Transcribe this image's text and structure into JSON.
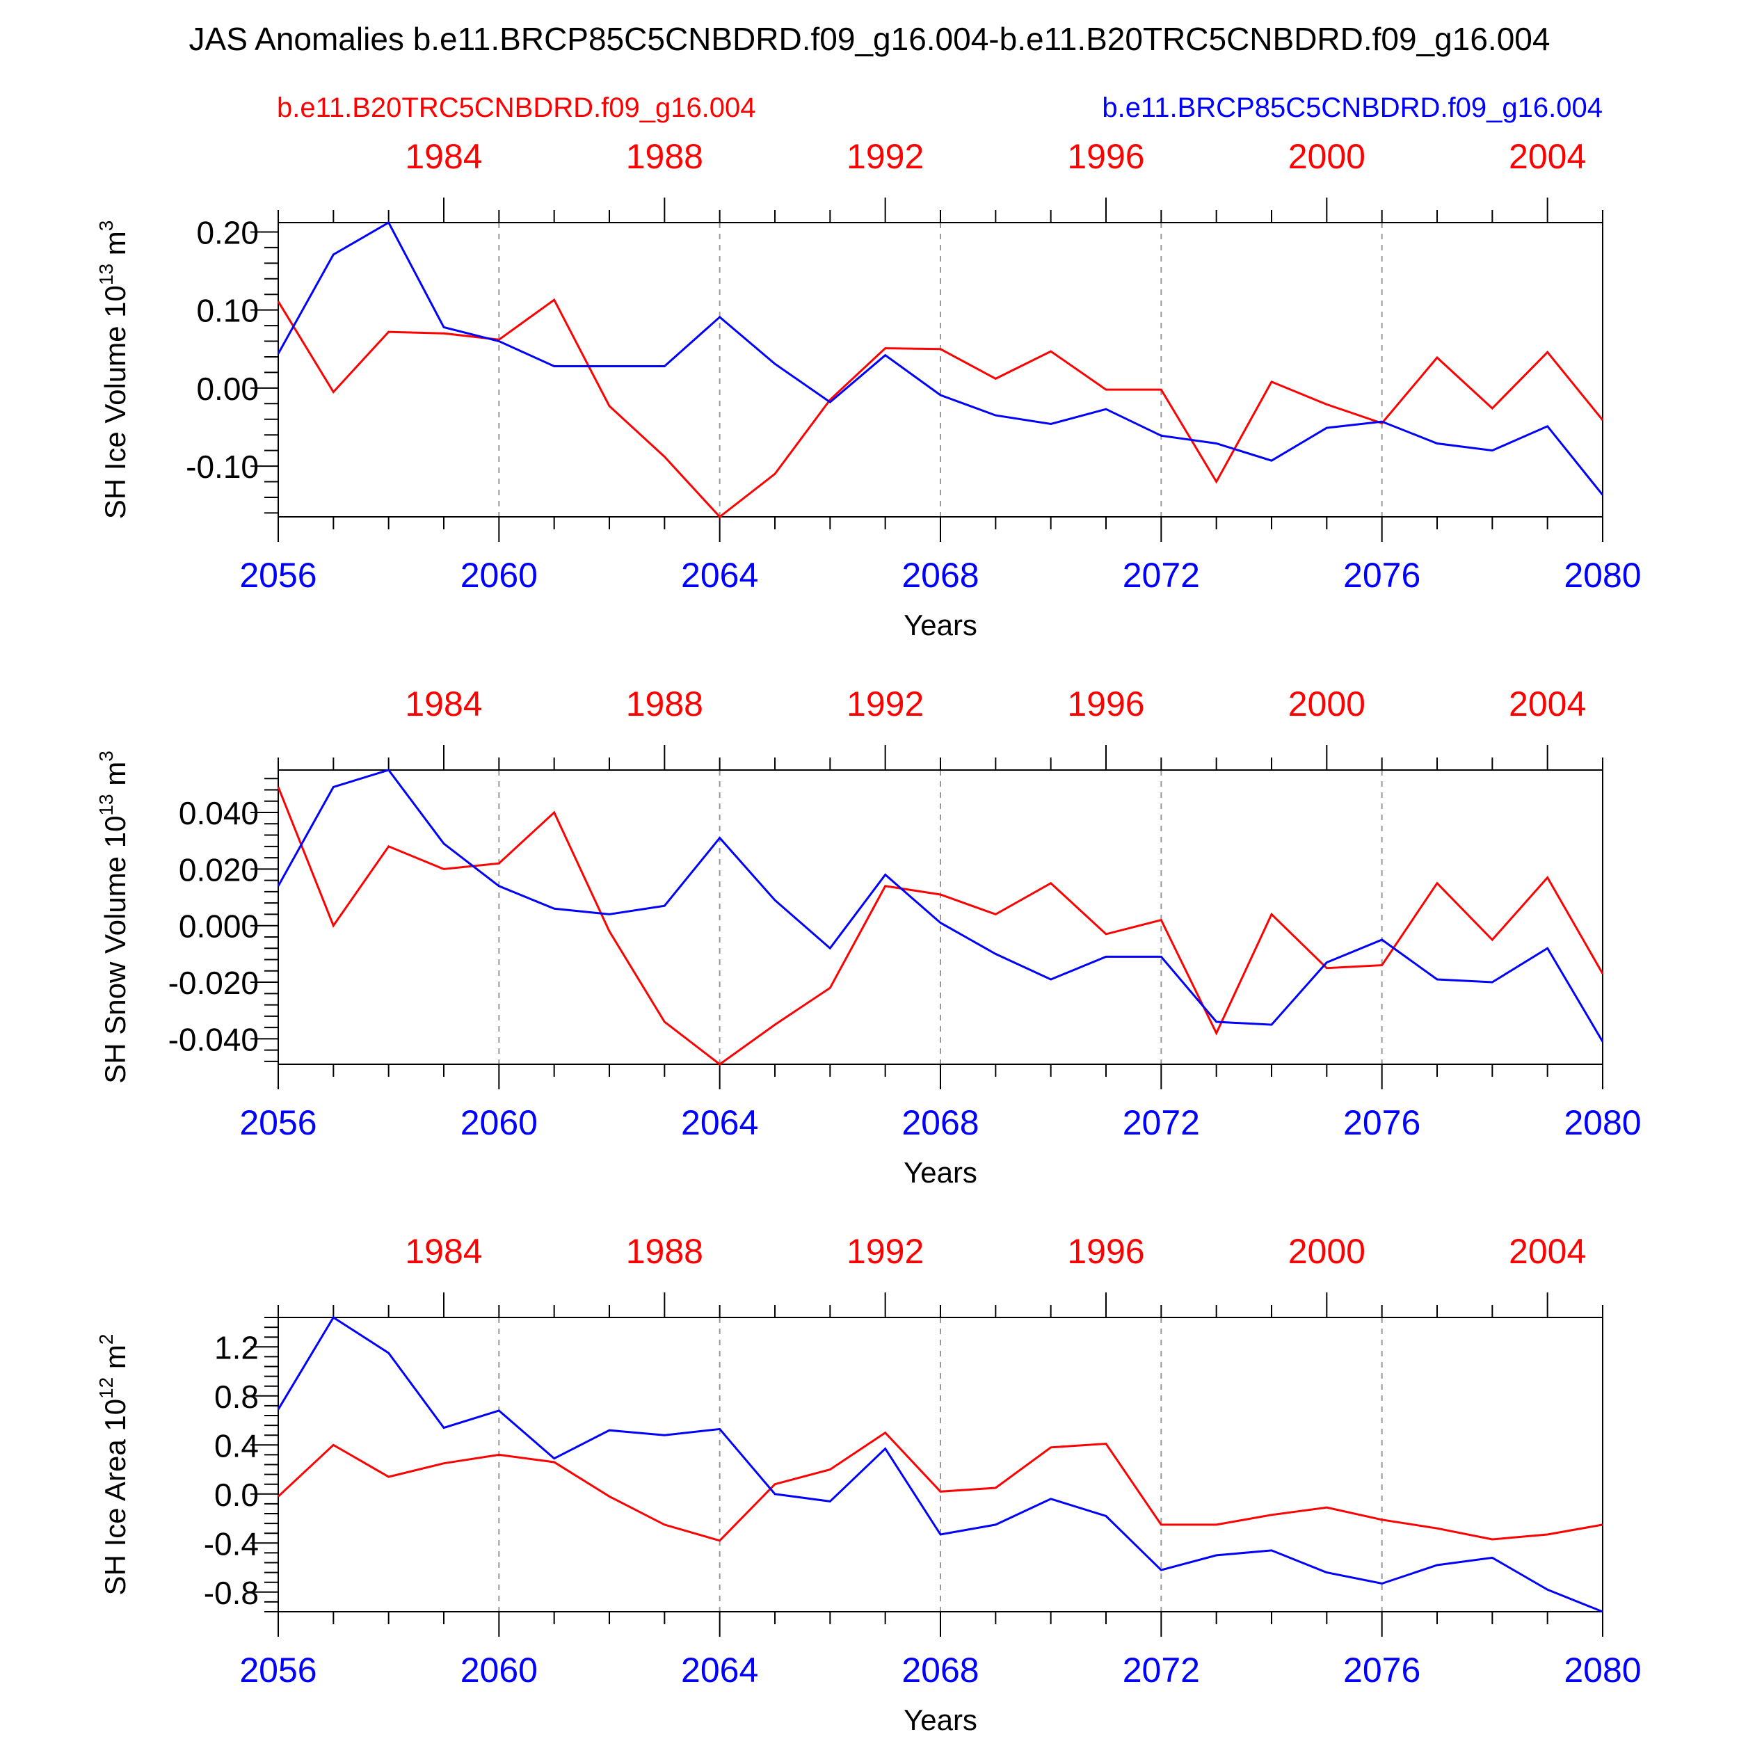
{
  "figure": {
    "title": "JAS Anomalies b.e11.BRCP85C5CNBDRD.f09_g16.004-b.e11.B20TRC5CNBDRD.f09_g16.004",
    "legend_left": "b.e11.B20TRC5CNBDRD.f09_g16.004",
    "legend_right": "b.e11.BRCP85C5CNBDRD.f09_g16.004",
    "colors": {
      "historical": "#ff0000",
      "future": "#0000ff",
      "axis": "#000000",
      "grid": "#999999"
    }
  },
  "chart_data": [
    {
      "type": "line",
      "ylabel": "SH Ice Volume 10",
      "ylabel_exp": "13",
      "ylabel_unit": "m",
      "ylabel_unit_exp": "3",
      "xlabel": "Years",
      "x_bottom_ticks": [
        "2056",
        "2060",
        "2064",
        "2068",
        "2072",
        "2076",
        "2080"
      ],
      "x_top_ticks": [
        "1984",
        "1988",
        "1992",
        "1996",
        "2000",
        "2004"
      ],
      "y_ticks": [
        0.2,
        0.1,
        0.0,
        -0.1
      ],
      "y_tick_labels": [
        "0.20",
        "0.10",
        "0.00",
        "-0.10"
      ],
      "y_minor_step": 0.02,
      "ylim": [
        -0.165,
        0.212
      ],
      "xlim": [
        2056,
        2080
      ],
      "x_grid": true,
      "series": [
        {
          "name": "b.e11.B20TRC5CNBDRD.f09_g16.004",
          "color": "#ff0000",
          "x": [
            1981,
            1982,
            1983,
            1984,
            1985,
            1986,
            1987,
            1988,
            1989,
            1990,
            1991,
            1992,
            1993,
            1994,
            1995,
            1996,
            1997,
            1998,
            1999,
            2000,
            2001,
            2002,
            2003,
            2004,
            2005
          ],
          "values": [
            0.111,
            -0.005,
            0.072,
            0.07,
            0.062,
            0.113,
            -0.023,
            -0.088,
            -0.165,
            -0.11,
            -0.015,
            0.051,
            0.05,
            0.012,
            0.047,
            -0.002,
            -0.002,
            -0.12,
            0.008,
            -0.021,
            -0.045,
            0.039,
            -0.026,
            0.046,
            -0.041
          ]
        },
        {
          "name": "b.e11.BRCP85C5CNBDRD.f09_g16.004",
          "color": "#0000ff",
          "x": [
            2056,
            2057,
            2058,
            2059,
            2060,
            2061,
            2062,
            2063,
            2064,
            2065,
            2066,
            2067,
            2068,
            2069,
            2070,
            2071,
            2072,
            2073,
            2074,
            2075,
            2076,
            2077,
            2078,
            2079,
            2080
          ],
          "values": [
            0.044,
            0.171,
            0.212,
            0.078,
            0.06,
            0.028,
            0.028,
            0.028,
            0.091,
            0.031,
            -0.018,
            0.042,
            -0.009,
            -0.035,
            -0.046,
            -0.027,
            -0.061,
            -0.071,
            -0.093,
            -0.051,
            -0.043,
            -0.071,
            -0.08,
            -0.049,
            -0.137
          ]
        }
      ]
    },
    {
      "type": "line",
      "ylabel": "SH Snow Volume 10",
      "ylabel_exp": "13",
      "ylabel_unit": "m",
      "ylabel_unit_exp": "3",
      "xlabel": "Years",
      "x_bottom_ticks": [
        "2056",
        "2060",
        "2064",
        "2068",
        "2072",
        "2076",
        "2080"
      ],
      "x_top_ticks": [
        "1984",
        "1988",
        "1992",
        "1996",
        "2000",
        "2004"
      ],
      "y_ticks": [
        0.04,
        0.02,
        0.0,
        -0.02,
        -0.04
      ],
      "y_tick_labels": [
        "0.040",
        "0.020",
        "0.000",
        "-0.020",
        "-0.040"
      ],
      "y_minor_step": 0.004,
      "ylim": [
        -0.049,
        0.055
      ],
      "xlim": [
        2056,
        2080
      ],
      "x_grid": true,
      "series": [
        {
          "name": "b.e11.B20TRC5CNBDRD.f09_g16.004",
          "color": "#ff0000",
          "x": [
            1981,
            1982,
            1983,
            1984,
            1985,
            1986,
            1987,
            1988,
            1989,
            1990,
            1991,
            1992,
            1993,
            1994,
            1995,
            1996,
            1997,
            1998,
            1999,
            2000,
            2001,
            2002,
            2003,
            2004,
            2005
          ],
          "values": [
            0.049,
            0.0,
            0.028,
            0.02,
            0.022,
            0.04,
            -0.002,
            -0.034,
            -0.049,
            -0.035,
            -0.022,
            0.014,
            0.011,
            0.004,
            0.015,
            -0.003,
            0.002,
            -0.038,
            0.004,
            -0.015,
            -0.014,
            0.015,
            -0.005,
            0.017,
            -0.017
          ]
        },
        {
          "name": "b.e11.BRCP85C5CNBDRD.f09_g16.004",
          "color": "#0000ff",
          "x": [
            2056,
            2057,
            2058,
            2059,
            2060,
            2061,
            2062,
            2063,
            2064,
            2065,
            2066,
            2067,
            2068,
            2069,
            2070,
            2071,
            2072,
            2073,
            2074,
            2075,
            2076,
            2077,
            2078,
            2079,
            2080
          ],
          "values": [
            0.014,
            0.049,
            0.055,
            0.029,
            0.014,
            0.006,
            0.004,
            0.007,
            0.031,
            0.009,
            -0.008,
            0.018,
            0.001,
            -0.01,
            -0.019,
            -0.011,
            -0.011,
            -0.034,
            -0.035,
            -0.013,
            -0.005,
            -0.019,
            -0.02,
            -0.008,
            -0.041
          ]
        }
      ]
    },
    {
      "type": "line",
      "ylabel": "SH Ice Area 10",
      "ylabel_exp": "12",
      "ylabel_unit": "m",
      "ylabel_unit_exp": "2",
      "xlabel": "Years",
      "x_bottom_ticks": [
        "2056",
        "2060",
        "2064",
        "2068",
        "2072",
        "2076",
        "2080"
      ],
      "x_top_ticks": [
        "1984",
        "1988",
        "1992",
        "1996",
        "2000",
        "2004"
      ],
      "y_ticks": [
        1.2,
        0.8,
        0.4,
        0.0,
        -0.4,
        -0.8
      ],
      "y_tick_labels": [
        "1.2",
        "0.8",
        "0.4",
        "0.0",
        "-0.4",
        "-0.8"
      ],
      "y_minor_step": 0.08,
      "ylim": [
        -0.96,
        1.44
      ],
      "xlim": [
        2056,
        2080
      ],
      "x_grid": true,
      "series": [
        {
          "name": "b.e11.B20TRC5CNBDRD.f09_g16.004",
          "color": "#ff0000",
          "x": [
            1981,
            1982,
            1983,
            1984,
            1985,
            1986,
            1987,
            1988,
            1989,
            1990,
            1991,
            1992,
            1993,
            1994,
            1995,
            1996,
            1997,
            1998,
            1999,
            2000,
            2001,
            2002,
            2003,
            2004,
            2005
          ],
          "values": [
            -0.02,
            0.4,
            0.14,
            0.25,
            0.32,
            0.26,
            -0.02,
            -0.25,
            -0.38,
            0.08,
            0.2,
            0.5,
            0.02,
            0.05,
            0.38,
            0.41,
            -0.25,
            -0.25,
            -0.17,
            -0.11,
            -0.21,
            -0.28,
            -0.37,
            -0.33,
            -0.25
          ]
        },
        {
          "name": "b.e11.BRCP85C5CNBDRD.f09_g16.004",
          "color": "#0000ff",
          "x": [
            2056,
            2057,
            2058,
            2059,
            2060,
            2061,
            2062,
            2063,
            2064,
            2065,
            2066,
            2067,
            2068,
            2069,
            2070,
            2071,
            2072,
            2073,
            2074,
            2075,
            2076,
            2077,
            2078,
            2079,
            2080
          ],
          "values": [
            0.69,
            1.44,
            1.15,
            0.54,
            0.68,
            0.29,
            0.52,
            0.48,
            0.53,
            0.0,
            -0.06,
            0.37,
            -0.33,
            -0.25,
            -0.04,
            -0.18,
            -0.62,
            -0.5,
            -0.46,
            -0.64,
            -0.73,
            -0.58,
            -0.52,
            -0.78,
            -0.96
          ]
        }
      ]
    }
  ]
}
